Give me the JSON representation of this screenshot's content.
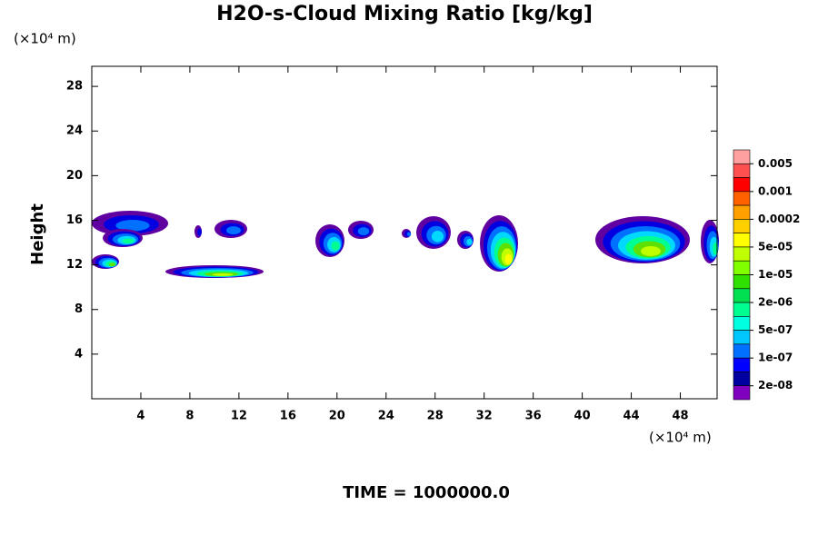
{
  "chart_data": {
    "type": "contour",
    "title": "H2O-s-Cloud Mixing Ratio [kg/kg]",
    "y_label": "Height",
    "x_unit": "(×10⁴ m)",
    "y_unit": "(×10⁴ m)",
    "annotation": "TIME = 1000000.0",
    "xlim": [
      0,
      51
    ],
    "ylim": [
      0,
      29.8
    ],
    "xticks": [
      4,
      8,
      12,
      16,
      20,
      24,
      28,
      32,
      36,
      40,
      44,
      48
    ],
    "yticks": [
      4,
      8,
      12,
      16,
      20,
      24,
      28
    ],
    "colorbar_levels": [
      0.005,
      0.001,
      0.0002,
      {
        "value": 5e-05,
        "label": "5e-05"
      },
      {
        "value": 1e-05,
        "label": "1e-05"
      },
      {
        "value": 2e-06,
        "label": "2e-06"
      },
      {
        "value": 5e-07,
        "label": "5e-07"
      },
      {
        "value": 1e-07,
        "label": "1e-07"
      },
      {
        "value": 2e-08,
        "label": "2e-08"
      }
    ],
    "colorbar_colors": [
      "#ffa0a0",
      "#ff5050",
      "#ff0000",
      "#ff6000",
      "#ffa000",
      "#ffd000",
      "#ffff00",
      "#c0ff00",
      "#80ff00",
      "#30e000",
      "#00e050",
      "#00ff90",
      "#00ffe0",
      "#00c8ff",
      "#0070ff",
      "#0000ff",
      "#0000a0",
      "#8000c0"
    ]
  }
}
